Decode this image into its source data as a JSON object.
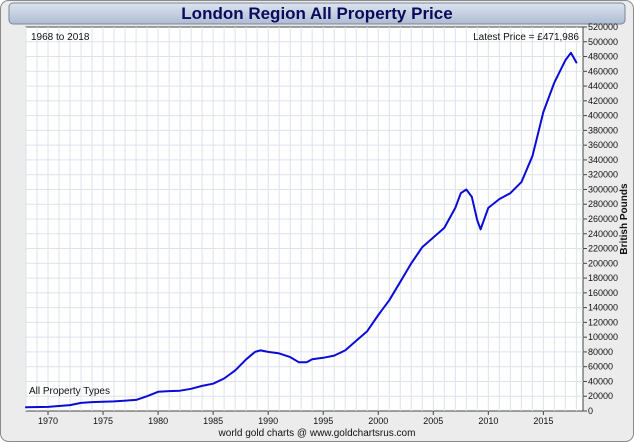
{
  "colors": {
    "line": "#0b0bd8",
    "grid": "#dde3ec",
    "frame_bg": "#ececec",
    "title_bar": "#c5cedf",
    "plot_bg": "#ffffff"
  },
  "chart_data": {
    "type": "line",
    "title": "London Region All Property Price",
    "date_range": "1968 to 2018",
    "latest_price": "Latest Price = £471,986",
    "series_label": "All Property Types",
    "footer": "world gold charts @ www.goldchartsrus.com",
    "xlabel": "",
    "ylabel": "British Pounds",
    "xlim": [
      1968,
      2018.6
    ],
    "ylim": [
      0,
      520000
    ],
    "x_ticks": [
      1970,
      1975,
      1980,
      1985,
      1990,
      1995,
      2000,
      2005,
      2010,
      2015
    ],
    "y_ticks": [
      0,
      20000,
      40000,
      60000,
      80000,
      100000,
      120000,
      140000,
      160000,
      180000,
      200000,
      220000,
      240000,
      260000,
      280000,
      300000,
      320000,
      340000,
      360000,
      380000,
      400000,
      420000,
      440000,
      460000,
      480000,
      500000,
      520000
    ],
    "series": [
      {
        "name": "All Property Types",
        "x": [
          1968,
          1970,
          1972,
          1973,
          1974,
          1976,
          1978,
          1979,
          1980,
          1981,
          1982,
          1983,
          1984,
          1985,
          1986,
          1987,
          1988,
          1988.8,
          1989.3,
          1990,
          1991,
          1992,
          1992.8,
          1993.5,
          1994,
          1995,
          1996,
          1997,
          1998,
          1999,
          2000,
          2001,
          2002,
          2003,
          2004,
          2005,
          2006,
          2007,
          2007.5,
          2008,
          2008.5,
          2009,
          2009.3,
          2010,
          2011,
          2012,
          2013,
          2014,
          2014.5,
          2015,
          2016,
          2016.5,
          2017,
          2017.5,
          2018
        ],
        "values": [
          5000,
          5500,
          8000,
          11000,
          12000,
          13000,
          15000,
          20000,
          26000,
          27000,
          27500,
          30000,
          34000,
          37000,
          44000,
          55000,
          70000,
          80000,
          82000,
          80000,
          78000,
          73000,
          66000,
          66000,
          70000,
          72000,
          75000,
          82000,
          95000,
          108000,
          130000,
          150000,
          175000,
          200000,
          222000,
          235000,
          248000,
          275000,
          295000,
          300000,
          290000,
          258000,
          246000,
          275000,
          287000,
          295000,
          310000,
          345000,
          375000,
          405000,
          445000,
          460000,
          475000,
          485000,
          471986
        ]
      }
    ]
  }
}
